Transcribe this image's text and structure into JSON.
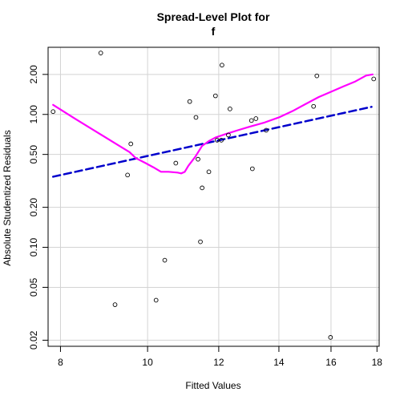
{
  "chart_data": {
    "type": "scatter",
    "title_line1": "Spread-Level Plot for",
    "title_line2": "f",
    "xlabel": "Fitted Values",
    "ylabel": "Absolute Studentized Residuals",
    "xlim": [
      7.75,
      18.1
    ],
    "ylim": [
      0.018,
      3.2
    ],
    "log_x": true,
    "log_y": true,
    "grid": true,
    "x_ticks": [
      {
        "value": 8,
        "label": "8"
      },
      {
        "value": 10,
        "label": "10"
      },
      {
        "value": 12,
        "label": "12"
      },
      {
        "value": 14,
        "label": "14"
      },
      {
        "value": 16,
        "label": "16"
      },
      {
        "value": 18,
        "label": "18"
      }
    ],
    "y_ticks": [
      {
        "value": 0.02,
        "label": "0.02"
      },
      {
        "value": 0.05,
        "label": "0.05"
      },
      {
        "value": 0.1,
        "label": "0.10"
      },
      {
        "value": 0.2,
        "label": "0.20"
      },
      {
        "value": 0.5,
        "label": "0.50"
      },
      {
        "value": 1.0,
        "label": "1.00"
      },
      {
        "value": 2.0,
        "label": "2.00"
      }
    ],
    "points": [
      {
        "x": 7.85,
        "y": 1.05
      },
      {
        "x": 8.87,
        "y": 2.9
      },
      {
        "x": 9.2,
        "y": 0.037
      },
      {
        "x": 9.5,
        "y": 0.35
      },
      {
        "x": 9.58,
        "y": 0.6
      },
      {
        "x": 10.22,
        "y": 0.04
      },
      {
        "x": 10.45,
        "y": 0.08
      },
      {
        "x": 10.75,
        "y": 0.43
      },
      {
        "x": 11.14,
        "y": 1.25
      },
      {
        "x": 11.32,
        "y": 0.95
      },
      {
        "x": 11.38,
        "y": 0.46
      },
      {
        "x": 11.45,
        "y": 0.11
      },
      {
        "x": 11.5,
        "y": 0.28
      },
      {
        "x": 11.7,
        "y": 0.37
      },
      {
        "x": 11.9,
        "y": 1.38
      },
      {
        "x": 11.95,
        "y": 0.64
      },
      {
        "x": 12.1,
        "y": 2.35
      },
      {
        "x": 12.08,
        "y": 0.64
      },
      {
        "x": 12.3,
        "y": 0.7
      },
      {
        "x": 12.35,
        "y": 1.1
      },
      {
        "x": 13.08,
        "y": 0.39
      },
      {
        "x": 13.05,
        "y": 0.9
      },
      {
        "x": 13.2,
        "y": 0.93
      },
      {
        "x": 13.55,
        "y": 0.76
      },
      {
        "x": 15.3,
        "y": 1.15
      },
      {
        "x": 15.43,
        "y": 1.95
      },
      {
        "x": 15.98,
        "y": 0.021
      },
      {
        "x": 17.85,
        "y": 1.85
      }
    ],
    "series": [
      {
        "style": "dashed",
        "color": "#0000cc",
        "x": [
          7.85,
          17.75
        ],
        "y": [
          0.34,
          1.14
        ]
      },
      {
        "style": "solid",
        "color": "#ff00ff",
        "x": [
          7.85,
          8.3,
          8.8,
          9.3,
          9.55,
          9.7,
          9.95,
          10.15,
          10.35,
          10.55,
          10.8,
          10.9,
          11.0,
          11.1,
          11.3,
          11.5,
          11.7,
          11.9,
          12.2,
          12.6,
          13.0,
          13.5,
          14.0,
          14.5,
          15.0,
          15.5,
          16.0,
          16.5,
          17.0,
          17.5,
          17.8
        ],
        "y": [
          1.18,
          0.93,
          0.73,
          0.58,
          0.52,
          0.47,
          0.43,
          0.4,
          0.37,
          0.37,
          0.365,
          0.36,
          0.37,
          0.41,
          0.48,
          0.58,
          0.63,
          0.67,
          0.71,
          0.76,
          0.81,
          0.87,
          0.95,
          1.06,
          1.2,
          1.35,
          1.48,
          1.62,
          1.76,
          1.96,
          2.0
        ]
      }
    ]
  }
}
